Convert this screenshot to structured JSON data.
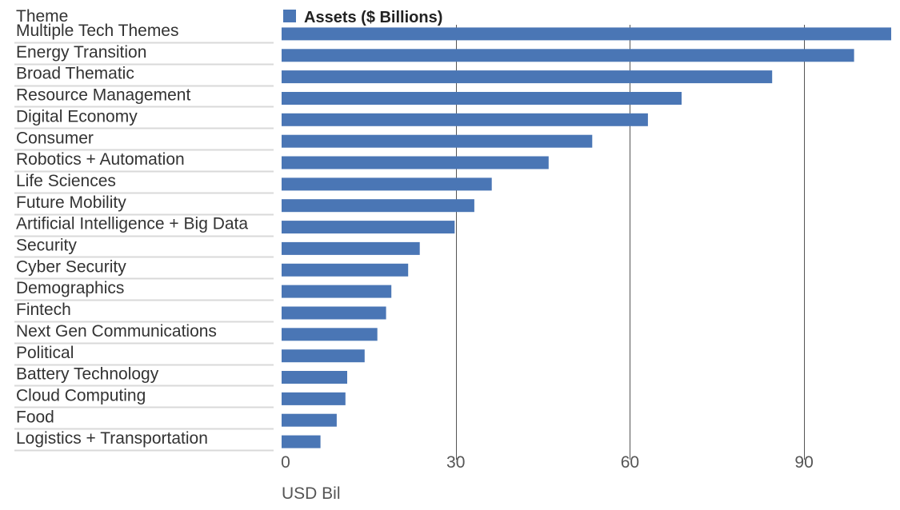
{
  "chart_data": {
    "type": "bar",
    "orientation": "horizontal",
    "category_header": "Theme",
    "legend": "Assets ($ Billions)",
    "xlabel": "USD Bil",
    "xlim": [
      0,
      105
    ],
    "xticks": [
      "0",
      "30",
      "60",
      "90"
    ],
    "xtick_values": [
      0,
      30,
      60,
      90
    ],
    "grid": true,
    "bar_color": "#4a76b5",
    "categories": [
      "Multiple Tech Themes",
      "Energy Transition",
      "Broad Thematic",
      "Resource Management",
      "Digital Economy",
      "Consumer",
      "Robotics + Automation",
      "Life Sciences",
      "Future Mobility",
      "Artificial Intelligence + Big Data",
      "Security",
      "Cyber Security",
      "Demographics",
      "Fintech",
      "Next Gen Communications",
      "Political",
      "Battery Technology",
      "Cloud Computing",
      "Food",
      "Logistics + Transportation"
    ],
    "values": [
      105,
      98.6,
      84.5,
      68.9,
      63.1,
      53.5,
      46.0,
      36.2,
      33.2,
      29.8,
      23.8,
      21.8,
      18.9,
      18.0,
      16.5,
      14.3,
      11.3,
      11.0,
      9.5,
      6.7
    ]
  }
}
